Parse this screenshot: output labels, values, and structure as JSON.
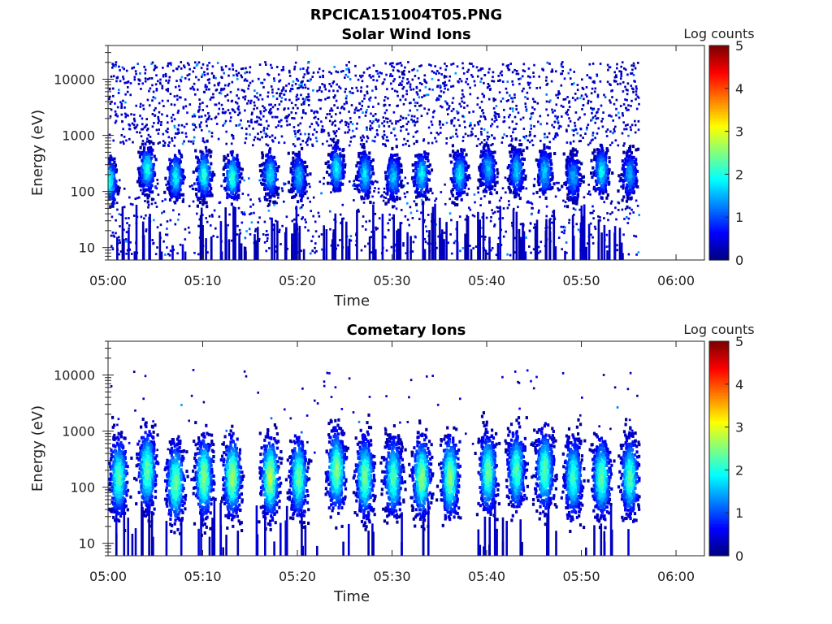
{
  "figure": {
    "title": "RPCICA151004T05.PNG"
  },
  "chart_data": [
    {
      "type": "heatmap",
      "title": "Solar Wind Ions",
      "xlabel": "Time",
      "ylabel": "Energy (eV)",
      "x_ticks": [
        "05:00",
        "05:10",
        "05:20",
        "05:30",
        "05:40",
        "05:50",
        "06:00"
      ],
      "y_ticks": [
        "10",
        "100",
        "1000",
        "10000"
      ],
      "y_scale": "log",
      "xlim": [
        "05:00",
        "06:03"
      ],
      "ylim": [
        6,
        40000
      ],
      "data_end": "05:56",
      "colorbar": {
        "label": "Log counts",
        "range": [
          0,
          5
        ],
        "ticks": [
          "0",
          "1",
          "2",
          "3",
          "4",
          "5"
        ],
        "colormap": "jet"
      },
      "clusters": [
        {
          "time": "05:00",
          "energy_center": 150,
          "peak_log_counts": 2.0
        },
        {
          "time": "05:04",
          "energy_center": 250,
          "peak_log_counts": 2.0
        },
        {
          "time": "05:07",
          "energy_center": 180,
          "peak_log_counts": 1.9
        },
        {
          "time": "05:10",
          "energy_center": 200,
          "peak_log_counts": 2.1
        },
        {
          "time": "05:13",
          "energy_center": 180,
          "peak_log_counts": 2.1
        },
        {
          "time": "05:17",
          "energy_center": 200,
          "peak_log_counts": 1.8
        },
        {
          "time": "05:20",
          "energy_center": 180,
          "peak_log_counts": 1.6
        },
        {
          "time": "05:24",
          "energy_center": 250,
          "peak_log_counts": 1.9
        },
        {
          "time": "05:27",
          "energy_center": 200,
          "peak_log_counts": 1.8
        },
        {
          "time": "05:30",
          "energy_center": 180,
          "peak_log_counts": 1.6
        },
        {
          "time": "05:33",
          "energy_center": 200,
          "peak_log_counts": 1.9
        },
        {
          "time": "05:37",
          "energy_center": 200,
          "peak_log_counts": 1.8
        },
        {
          "time": "05:40",
          "energy_center": 250,
          "peak_log_counts": 1.6
        },
        {
          "time": "05:43",
          "energy_center": 230,
          "peak_log_counts": 1.7
        },
        {
          "time": "05:46",
          "energy_center": 220,
          "peak_log_counts": 1.7
        },
        {
          "time": "05:49",
          "energy_center": 180,
          "peak_log_counts": 1.5
        },
        {
          "time": "05:52",
          "energy_center": 230,
          "peak_log_counts": 1.9
        },
        {
          "time": "05:55",
          "energy_center": 200,
          "peak_log_counts": 1.5
        }
      ]
    },
    {
      "type": "heatmap",
      "title": "Cometary Ions",
      "xlabel": "Time",
      "ylabel": "Energy (eV)",
      "x_ticks": [
        "05:00",
        "05:10",
        "05:20",
        "05:30",
        "05:40",
        "05:50",
        "06:00"
      ],
      "y_ticks": [
        "10",
        "100",
        "1000",
        "10000"
      ],
      "y_scale": "log",
      "xlim": [
        "05:00",
        "06:03"
      ],
      "ylim": [
        6,
        40000
      ],
      "data_end": "05:56",
      "colorbar": {
        "label": "Log counts",
        "range": [
          0,
          5
        ],
        "ticks": [
          "0",
          "1",
          "2",
          "3",
          "4",
          "5"
        ],
        "colormap": "jet"
      },
      "clusters": [
        {
          "time": "05:01",
          "energy_center": 150,
          "peak_log_counts": 2.3
        },
        {
          "time": "05:04",
          "energy_center": 200,
          "peak_log_counts": 2.4
        },
        {
          "time": "05:07",
          "energy_center": 120,
          "peak_log_counts": 2.5
        },
        {
          "time": "05:10",
          "energy_center": 150,
          "peak_log_counts": 2.6
        },
        {
          "time": "05:13",
          "energy_center": 150,
          "peak_log_counts": 2.7
        },
        {
          "time": "05:17",
          "energy_center": 150,
          "peak_log_counts": 2.8
        },
        {
          "time": "05:20",
          "energy_center": 150,
          "peak_log_counts": 2.4
        },
        {
          "time": "05:24",
          "energy_center": 200,
          "peak_log_counts": 2.6
        },
        {
          "time": "05:27",
          "energy_center": 150,
          "peak_log_counts": 2.5
        },
        {
          "time": "05:30",
          "energy_center": 150,
          "peak_log_counts": 2.3
        },
        {
          "time": "05:33",
          "energy_center": 150,
          "peak_log_counts": 2.6
        },
        {
          "time": "05:36",
          "energy_center": 150,
          "peak_log_counts": 2.6
        },
        {
          "time": "05:40",
          "energy_center": 180,
          "peak_log_counts": 2.4
        },
        {
          "time": "05:43",
          "energy_center": 200,
          "peak_log_counts": 2.3
        },
        {
          "time": "05:46",
          "energy_center": 200,
          "peak_log_counts": 2.4
        },
        {
          "time": "05:49",
          "energy_center": 150,
          "peak_log_counts": 2.2
        },
        {
          "time": "05:52",
          "energy_center": 150,
          "peak_log_counts": 2.4
        },
        {
          "time": "05:55",
          "energy_center": 150,
          "peak_log_counts": 2.3
        }
      ]
    }
  ]
}
